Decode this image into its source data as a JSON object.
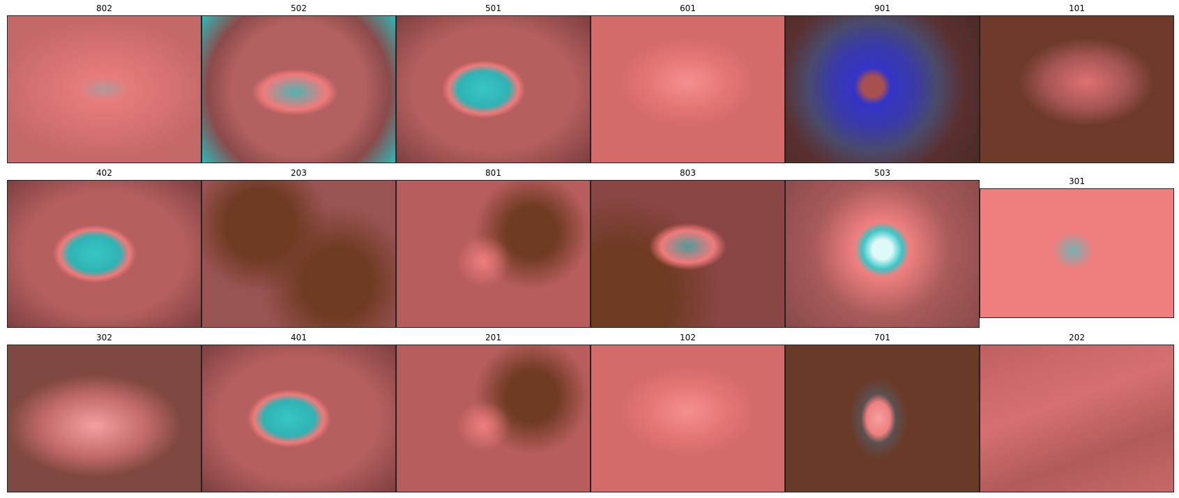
{
  "panels": [
    {
      "title": "802",
      "style": "faint"
    },
    {
      "title": "502",
      "style": "oval"
    },
    {
      "title": "501",
      "style": "cyanblob"
    },
    {
      "title": "601",
      "style": "pinkpatch"
    },
    {
      "title": "901",
      "style": "blue"
    },
    {
      "title": "101",
      "style": "dark"
    },
    {
      "title": "402",
      "style": "cyanblob"
    },
    {
      "title": "203",
      "style": "darkmottle"
    },
    {
      "title": "801",
      "style": "mottle"
    },
    {
      "title": "803",
      "style": "hair"
    },
    {
      "title": "503",
      "style": "spot"
    },
    {
      "title": "301",
      "style": "bright"
    },
    {
      "title": "302",
      "style": "faintdark"
    },
    {
      "title": "401",
      "style": "cyanblob"
    },
    {
      "title": "201",
      "style": "mottle"
    },
    {
      "title": "102",
      "style": "pinkpatch"
    },
    {
      "title": "701",
      "style": "ring"
    },
    {
      "title": "202",
      "style": "streak"
    }
  ],
  "colors": {
    "lesion_cyan": "#39c6c6",
    "skin_pink": "#f07a7a",
    "skin_dark": "#8a4545",
    "vignette_blue": "#3434c8",
    "brown": "#6e3a22"
  }
}
